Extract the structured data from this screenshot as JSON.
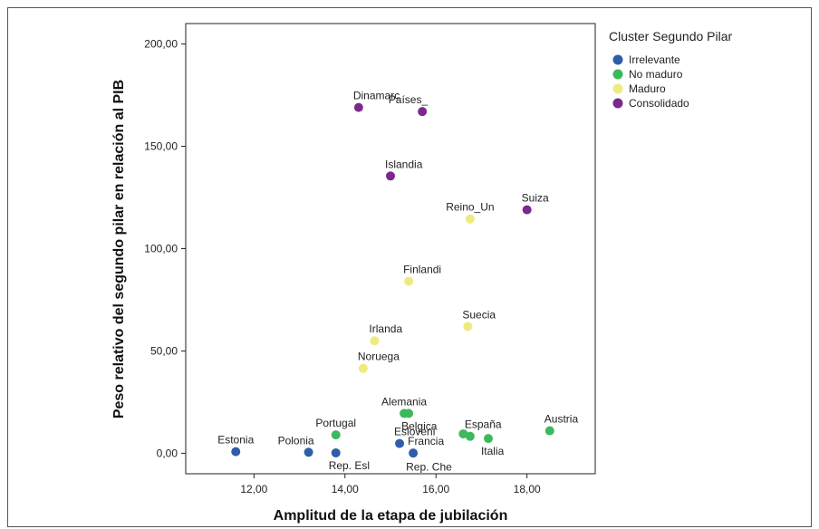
{
  "chart_data": {
    "type": "scatter",
    "xlabel": "Amplitud de la etapa de jubilación",
    "ylabel": "Peso relativo del segundo pilar en relación al PIB",
    "xlim": [
      10.5,
      19.5
    ],
    "ylim": [
      -10,
      210
    ],
    "x_ticks": [
      12,
      14,
      16,
      18
    ],
    "x_tick_labels": [
      "12,00",
      "14,00",
      "16,00",
      "18,00"
    ],
    "y_ticks": [
      0,
      50,
      100,
      150,
      200
    ],
    "y_tick_labels": [
      "0,00",
      "50,00",
      "100,00",
      "150,00",
      "200,00"
    ],
    "grid": false,
    "legend": {
      "title": "Cluster Segundo Pilar",
      "placement": "right",
      "entries": [
        {
          "name": "Irrelevante",
          "color": "#2f5ea8"
        },
        {
          "name": "No maduro",
          "color": "#3cb95c"
        },
        {
          "name": "Maduro",
          "color": "#eeea80"
        },
        {
          "name": "Consolidado",
          "color": "#7a2a8a"
        }
      ]
    },
    "points": [
      {
        "label": "Estonia",
        "x": 11.6,
        "y": 0.8,
        "cluster": 0,
        "label_pos": "above"
      },
      {
        "label": "Polonia",
        "x": 13.2,
        "y": 0.5,
        "cluster": 0,
        "label_pos": "above-left"
      },
      {
        "label": "Rep. Esl",
        "x": 13.8,
        "y": 0.2,
        "cluster": 0,
        "label_pos": "below-right"
      },
      {
        "label": "Esloveni",
        "x": 15.2,
        "y": 4.8,
        "cluster": 0,
        "label_pos": "above-right"
      },
      {
        "label": "Francia",
        "x": 15.5,
        "y": 0.1,
        "cluster": 0,
        "label_pos": "above-right"
      },
      {
        "label": "Rep. Che",
        "x": 15.5,
        "y": -0.5,
        "cluster": 0,
        "label_pos": "below-right",
        "hidden_marker": true
      },
      {
        "label": "Portugal",
        "x": 13.8,
        "y": 9.0,
        "cluster": 1,
        "label_pos": "above"
      },
      {
        "label": "Alemania",
        "x": 15.3,
        "y": 19.5,
        "cluster": 1,
        "label_pos": "above"
      },
      {
        "label": "Belgica",
        "x": 15.4,
        "y": 19.5,
        "cluster": 1,
        "label_pos": "below-right"
      },
      {
        "label": "",
        "x": 16.6,
        "y": 9.5,
        "cluster": 1,
        "label_pos": "none"
      },
      {
        "label": "España",
        "x": 16.75,
        "y": 8.3,
        "cluster": 1,
        "label_pos": "above-right"
      },
      {
        "label": "Italia",
        "x": 17.15,
        "y": 7.2,
        "cluster": 1,
        "label_pos": "below-right"
      },
      {
        "label": "Austria",
        "x": 18.5,
        "y": 11.0,
        "cluster": 1,
        "label_pos": "above-right"
      },
      {
        "label": "Noruega",
        "x": 14.4,
        "y": 41.5,
        "cluster": 2,
        "label_pos": "above-right"
      },
      {
        "label": "Irlanda",
        "x": 14.65,
        "y": 55.0,
        "cluster": 2,
        "label_pos": "above-right"
      },
      {
        "label": "Finlandi",
        "x": 15.4,
        "y": 84.0,
        "cluster": 2,
        "label_pos": "above-right"
      },
      {
        "label": "Suecia",
        "x": 16.7,
        "y": 62.0,
        "cluster": 2,
        "label_pos": "above-right"
      },
      {
        "label": "Reino_Un",
        "x": 16.75,
        "y": 114.5,
        "cluster": 2,
        "label_pos": "above"
      },
      {
        "label": "Islandia",
        "x": 15.0,
        "y": 135.5,
        "cluster": 3,
        "label_pos": "above-right"
      },
      {
        "label": "Suiza",
        "x": 18.0,
        "y": 119.0,
        "cluster": 3,
        "label_pos": "above-right"
      },
      {
        "label": "Dinamarc",
        "x": 14.3,
        "y": 169.0,
        "cluster": 3,
        "label_pos": "above-right"
      },
      {
        "label": "Países_",
        "x": 15.7,
        "y": 167.0,
        "cluster": 3,
        "label_pos": "above-left"
      }
    ]
  }
}
